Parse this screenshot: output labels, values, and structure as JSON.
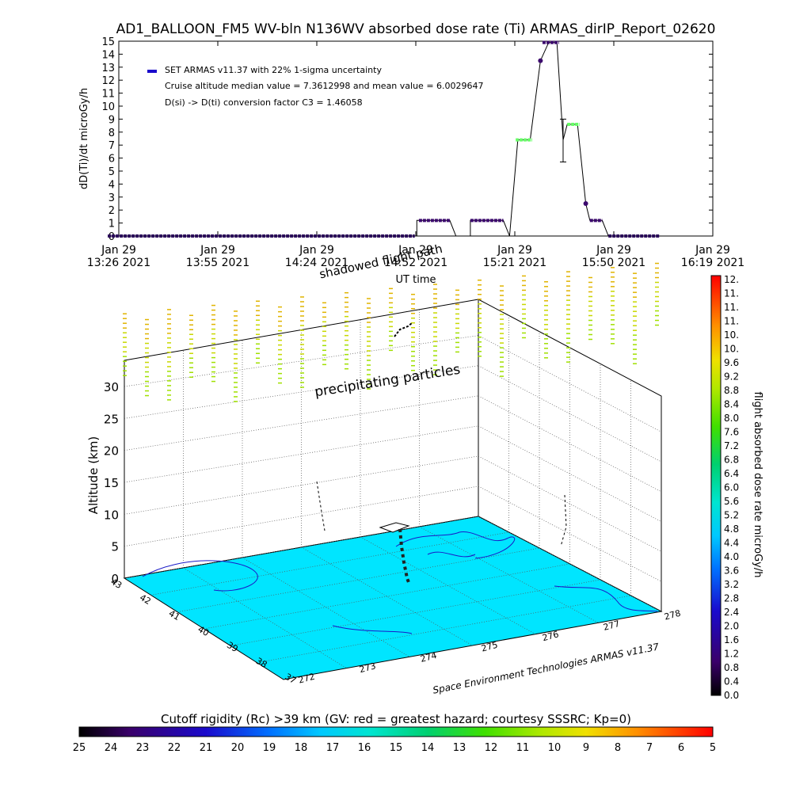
{
  "title": "AD1_BALLOON_FM5 WV-bln N136WV absorbed dose rate (Ti) ARMAS_dirIP_Report_02620",
  "colors": {
    "cyan": "#00e5ff",
    "navy": "#1a0a8a",
    "purple": "#3c0a6e",
    "green": "#66ff66",
    "tick_yellow": "#d4e000"
  },
  "chart_data": [
    {
      "type": "line",
      "ylabel": "dD(Ti)/dt microGy/h",
      "xlabel": "UT time",
      "ylim": [
        0,
        15
      ],
      "yticks": [
        "0",
        "1",
        "2",
        "3",
        "4",
        "5",
        "6",
        "7",
        "8",
        "9",
        "10",
        "11",
        "12",
        "13",
        "14",
        "15"
      ],
      "xticks": [
        {
          "d": "Jan 29",
          "t": "13:26 2021"
        },
        {
          "d": "Jan 29",
          "t": "13:55 2021"
        },
        {
          "d": "Jan 29",
          "t": "14:24 2021"
        },
        {
          "d": "Jan 29",
          "t": "14:52 2021"
        },
        {
          "d": "Jan 29",
          "t": "15:21 2021"
        },
        {
          "d": "Jan 29",
          "t": "15:50 2021"
        },
        {
          "d": "Jan 29",
          "t": "16:19 2021"
        }
      ],
      "legend": [
        "SET ARMAS v11.37 with 22% 1-sigma uncertainty",
        "Cruise altitude median value = 7.3612998 and mean value = 6.0029647",
        "D(si) -> D(ti) conversion factor C3 = 1.46058"
      ],
      "series_points": [
        {
          "t": 13.38,
          "v": 0
        },
        {
          "t": 14.88,
          "v": 0
        },
        {
          "t": 14.88,
          "v": 1.2
        },
        {
          "t": 15.04,
          "v": 1.2
        },
        {
          "t": 15.07,
          "v": 0
        },
        {
          "t": 15.14,
          "v": 0
        },
        {
          "t": 15.14,
          "v": 1.2
        },
        {
          "t": 15.3,
          "v": 1.2
        },
        {
          "t": 15.33,
          "v": 0
        },
        {
          "t": 15.37,
          "v": 7.4
        },
        {
          "t": 15.43,
          "v": 7.4
        },
        {
          "t": 15.48,
          "v": 13.5
        },
        {
          "t": 15.52,
          "v": 14.9
        },
        {
          "t": 15.56,
          "v": 14.9
        },
        {
          "t": 15.59,
          "v": 7.4
        },
        {
          "t": 15.61,
          "v": 8.6
        },
        {
          "t": 15.66,
          "v": 8.6
        },
        {
          "t": 15.7,
          "v": 2.5
        },
        {
          "t": 15.72,
          "v": 1.2
        },
        {
          "t": 15.78,
          "v": 1.2
        },
        {
          "t": 15.81,
          "v": 0
        },
        {
          "t": 16.2,
          "v": 0
        }
      ],
      "segments": [
        {
          "t0": 13.38,
          "t1": 14.87,
          "v": 0,
          "color": "#2a0a5a"
        },
        {
          "t0": 14.89,
          "t1": 15.04,
          "v": 1.2,
          "color": "#3c0a6e"
        },
        {
          "t0": 15.14,
          "t1": 15.3,
          "v": 1.2,
          "color": "#3c0a6e"
        },
        {
          "t0": 15.36,
          "t1": 15.44,
          "v": 7.4,
          "color": "#66ff66"
        },
        {
          "t0": 15.49,
          "t1": 15.57,
          "v": 14.9,
          "color": "#3c0a6e"
        },
        {
          "t0": 15.61,
          "t1": 15.67,
          "v": 8.6,
          "color": "#66ff66"
        },
        {
          "t0": 15.72,
          "t1": 15.78,
          "v": 1.2,
          "color": "#3c0a6e"
        },
        {
          "t0": 15.81,
          "t1": 16.06,
          "v": 0,
          "color": "#2a0a5a"
        }
      ],
      "error_bar": {
        "t": 15.59,
        "lo": 5.7,
        "hi": 9.0
      }
    },
    {
      "type": "scatter",
      "ylabel": "Altitude (km)",
      "zticks": [
        "0",
        "5",
        "10",
        "15",
        "20",
        "25",
        "30"
      ],
      "lat_ticks": [
        "43",
        "42",
        "41",
        "40",
        "39",
        "38",
        "37"
      ],
      "lon_ticks": [
        "272",
        "273",
        "274",
        "275",
        "276",
        "277",
        "278"
      ],
      "annotation": "precipitating particles",
      "shadow_label": "shadowed flight path",
      "credit": "Space Environment Technologies ARMAS v11.37"
    }
  ],
  "colorbars": {
    "right": {
      "label": "flight absorbed dose rate microGy/h",
      "ticks": [
        "0.0",
        "0.4",
        "0.8",
        "1.2",
        "1.6",
        "2.0",
        "2.4",
        "2.8",
        "3.2",
        "3.6",
        "4.0",
        "4.4",
        "4.8",
        "5.2",
        "5.6",
        "6.0",
        "6.4",
        "6.8",
        "7.2",
        "7.6",
        "8.0",
        "8.4",
        "8.8",
        "9.2",
        "9.6",
        "10.",
        "10.",
        "11.",
        "11.",
        "11.",
        "12."
      ]
    },
    "bottom": {
      "label": "Cutoff rigidity (Rc) >39 km (GV: red = greatest hazard; courtesy SSSRC; Kp=0)",
      "ticks": [
        "25",
        "24",
        "23",
        "22",
        "21",
        "20",
        "19",
        "18",
        "17",
        "16",
        "15",
        "14",
        "13",
        "12",
        "11",
        "10",
        "9",
        "8",
        "7",
        "6",
        "5"
      ]
    }
  }
}
